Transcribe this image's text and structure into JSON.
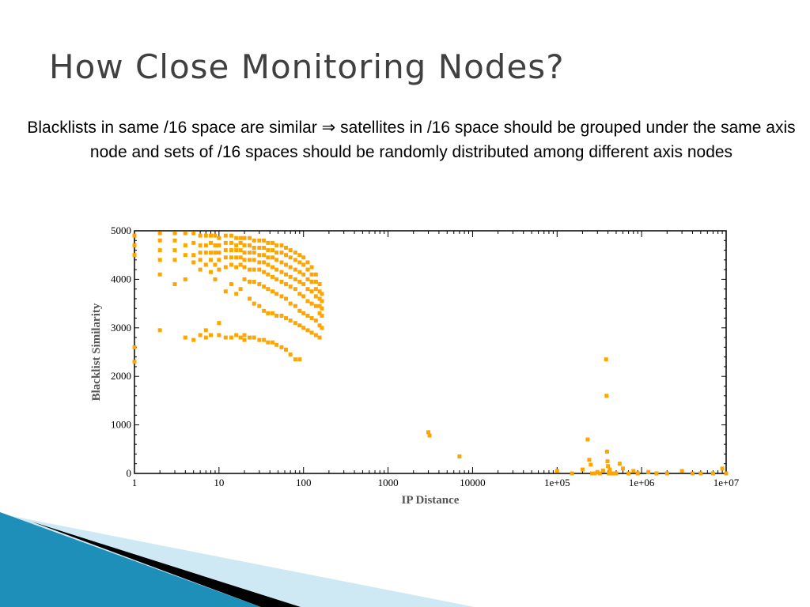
{
  "slide": {
    "title": "How Close Monitoring Nodes?",
    "body_part1": "Blacklists in same /16 space are similar",
    "implies_symbol": "⇒",
    "body_part2": "satellites in /16 space should be grouped under the same axis node and sets of /16 spaces should be randomly distributed among different axis nodes"
  },
  "colors": {
    "points": "#ffa500",
    "title": "#404040",
    "axis": "#000000",
    "decor_blue": "#1e8fb8",
    "decor_light": "#cfe9f4",
    "decor_dark": "#000000"
  },
  "chart_data": {
    "type": "scatter",
    "xlabel": "IP Distance",
    "ylabel": "Blacklist Similarity",
    "xscale": "log",
    "xlim": [
      1,
      10000000
    ],
    "ylim": [
      0,
      5000
    ],
    "xticks": [
      "1",
      "10",
      "100",
      "1000",
      "10000",
      "1e+05",
      "1e+06",
      "1e+07"
    ],
    "yticks": [
      "0",
      "1000",
      "2000",
      "3000",
      "4000",
      "5000"
    ],
    "grid": false,
    "points": [
      [
        1,
        4900
      ],
      [
        1,
        4700
      ],
      [
        1,
        4500
      ],
      [
        1,
        2600
      ],
      [
        1,
        2300
      ],
      [
        2,
        4950
      ],
      [
        2,
        4800
      ],
      [
        2,
        4600
      ],
      [
        2,
        4400
      ],
      [
        2,
        4100
      ],
      [
        2,
        2950
      ],
      [
        3,
        4950
      ],
      [
        3,
        4800
      ],
      [
        3,
        4600
      ],
      [
        3,
        3900
      ],
      [
        3,
        4400
      ],
      [
        4,
        4950
      ],
      [
        4,
        4700
      ],
      [
        4,
        4500
      ],
      [
        4,
        4000
      ],
      [
        4,
        2800
      ],
      [
        5,
        4950
      ],
      [
        5,
        4750
      ],
      [
        5,
        4500
      ],
      [
        5,
        4350
      ],
      [
        5,
        2750
      ],
      [
        6,
        4900
      ],
      [
        6,
        4700
      ],
      [
        6,
        4550
      ],
      [
        6,
        4400
      ],
      [
        6,
        4200
      ],
      [
        6,
        2850
      ],
      [
        7,
        4900
      ],
      [
        7,
        4700
      ],
      [
        7,
        4550
      ],
      [
        7,
        4300
      ],
      [
        7,
        2950
      ],
      [
        7,
        2800
      ],
      [
        8,
        4900
      ],
      [
        8,
        4750
      ],
      [
        8,
        4550
      ],
      [
        8,
        4400
      ],
      [
        8,
        4150
      ],
      [
        8,
        2850
      ],
      [
        9,
        4900
      ],
      [
        9,
        4700
      ],
      [
        9,
        4550
      ],
      [
        9,
        4300
      ],
      [
        9,
        4000
      ],
      [
        10,
        4850
      ],
      [
        10,
        4700
      ],
      [
        10,
        4550
      ],
      [
        10,
        4400
      ],
      [
        10,
        4200
      ],
      [
        10,
        3100
      ],
      [
        10,
        2850
      ],
      [
        12,
        4900
      ],
      [
        12,
        4750
      ],
      [
        12,
        4600
      ],
      [
        12,
        4450
      ],
      [
        12,
        4250
      ],
      [
        12,
        3750
      ],
      [
        12,
        2800
      ],
      [
        14,
        4900
      ],
      [
        14,
        4750
      ],
      [
        14,
        4600
      ],
      [
        14,
        4450
      ],
      [
        14,
        4300
      ],
      [
        14,
        3900
      ],
      [
        14,
        2800
      ],
      [
        16,
        4850
      ],
      [
        16,
        4700
      ],
      [
        16,
        4600
      ],
      [
        16,
        4450
      ],
      [
        16,
        4250
      ],
      [
        16,
        3700
      ],
      [
        16,
        2850
      ],
      [
        18,
        4850
      ],
      [
        18,
        4750
      ],
      [
        18,
        4600
      ],
      [
        18,
        4450
      ],
      [
        18,
        4300
      ],
      [
        18,
        3800
      ],
      [
        18,
        2800
      ],
      [
        20,
        4850
      ],
      [
        20,
        4700
      ],
      [
        20,
        4550
      ],
      [
        20,
        4400
      ],
      [
        20,
        4250
      ],
      [
        20,
        4000
      ],
      [
        20,
        2850
      ],
      [
        20,
        2750
      ],
      [
        23,
        4850
      ],
      [
        23,
        4700
      ],
      [
        23,
        4550
      ],
      [
        23,
        4400
      ],
      [
        23,
        4200
      ],
      [
        23,
        3950
      ],
      [
        23,
        3600
      ],
      [
        23,
        2800
      ],
      [
        26,
        4800
      ],
      [
        26,
        4650
      ],
      [
        26,
        4550
      ],
      [
        26,
        4400
      ],
      [
        26,
        4200
      ],
      [
        26,
        3950
      ],
      [
        26,
        3500
      ],
      [
        26,
        2800
      ],
      [
        30,
        4800
      ],
      [
        30,
        4650
      ],
      [
        30,
        4500
      ],
      [
        30,
        4350
      ],
      [
        30,
        4200
      ],
      [
        30,
        3900
      ],
      [
        30,
        3450
      ],
      [
        30,
        2750
      ],
      [
        34,
        4800
      ],
      [
        34,
        4650
      ],
      [
        34,
        4500
      ],
      [
        34,
        4350
      ],
      [
        34,
        4150
      ],
      [
        34,
        3850
      ],
      [
        34,
        3350
      ],
      [
        34,
        2750
      ],
      [
        38,
        4750
      ],
      [
        38,
        4600
      ],
      [
        38,
        4450
      ],
      [
        38,
        4300
      ],
      [
        38,
        4100
      ],
      [
        38,
        3800
      ],
      [
        38,
        3300
      ],
      [
        38,
        2700
      ],
      [
        43,
        4750
      ],
      [
        43,
        4600
      ],
      [
        43,
        4450
      ],
      [
        43,
        4250
      ],
      [
        43,
        4050
      ],
      [
        43,
        3750
      ],
      [
        43,
        3300
      ],
      [
        43,
        2700
      ],
      [
        48,
        4700
      ],
      [
        48,
        4550
      ],
      [
        48,
        4400
      ],
      [
        48,
        4200
      ],
      [
        48,
        4000
      ],
      [
        48,
        3700
      ],
      [
        48,
        3250
      ],
      [
        48,
        2650
      ],
      [
        55,
        4700
      ],
      [
        55,
        4550
      ],
      [
        55,
        4350
      ],
      [
        55,
        4150
      ],
      [
        55,
        3950
      ],
      [
        55,
        3650
      ],
      [
        55,
        3250
      ],
      [
        55,
        2600
      ],
      [
        62,
        4650
      ],
      [
        62,
        4500
      ],
      [
        62,
        4300
      ],
      [
        62,
        4100
      ],
      [
        62,
        3900
      ],
      [
        62,
        3600
      ],
      [
        62,
        3200
      ],
      [
        62,
        2550
      ],
      [
        70,
        4600
      ],
      [
        70,
        4450
      ],
      [
        70,
        4250
      ],
      [
        70,
        4050
      ],
      [
        70,
        3850
      ],
      [
        70,
        3500
      ],
      [
        70,
        3150
      ],
      [
        70,
        2450
      ],
      [
        80,
        4550
      ],
      [
        80,
        4400
      ],
      [
        80,
        4200
      ],
      [
        80,
        4000
      ],
      [
        80,
        3800
      ],
      [
        80,
        3450
      ],
      [
        80,
        3100
      ],
      [
        80,
        2350
      ],
      [
        90,
        4500
      ],
      [
        90,
        4350
      ],
      [
        90,
        4150
      ],
      [
        90,
        3950
      ],
      [
        90,
        3700
      ],
      [
        90,
        3350
      ],
      [
        90,
        3050
      ],
      [
        90,
        2350
      ],
      [
        100,
        4450
      ],
      [
        100,
        4300
      ],
      [
        100,
        4100
      ],
      [
        100,
        3900
      ],
      [
        100,
        3650
      ],
      [
        100,
        3300
      ],
      [
        100,
        3000
      ],
      [
        112,
        4350
      ],
      [
        112,
        4200
      ],
      [
        112,
        4000
      ],
      [
        112,
        3800
      ],
      [
        112,
        3550
      ],
      [
        112,
        3250
      ],
      [
        112,
        2950
      ],
      [
        125,
        4250
      ],
      [
        125,
        4100
      ],
      [
        125,
        3950
      ],
      [
        125,
        3750
      ],
      [
        125,
        3500
      ],
      [
        125,
        3200
      ],
      [
        125,
        2900
      ],
      [
        140,
        4100
      ],
      [
        140,
        3950
      ],
      [
        140,
        3800
      ],
      [
        140,
        3650
      ],
      [
        140,
        3450
      ],
      [
        140,
        3150
      ],
      [
        140,
        2850
      ],
      [
        155,
        3900
      ],
      [
        155,
        3750
      ],
      [
        155,
        3600
      ],
      [
        155,
        3450
      ],
      [
        155,
        3300
      ],
      [
        155,
        3050
      ],
      [
        155,
        2800
      ],
      [
        165,
        3700
      ],
      [
        165,
        3550
      ],
      [
        165,
        3400
      ],
      [
        165,
        3250
      ],
      [
        165,
        3000
      ],
      [
        3000,
        850
      ],
      [
        3100,
        780
      ],
      [
        7000,
        350
      ],
      [
        100000,
        50
      ],
      [
        150000,
        0
      ],
      [
        200000,
        80
      ],
      [
        230000,
        700
      ],
      [
        240000,
        280
      ],
      [
        250000,
        180
      ],
      [
        260000,
        0
      ],
      [
        280000,
        0
      ],
      [
        300000,
        30
      ],
      [
        320000,
        0
      ],
      [
        350000,
        60
      ],
      [
        380000,
        2350
      ],
      [
        385000,
        1600
      ],
      [
        390000,
        450
      ],
      [
        395000,
        250
      ],
      [
        400000,
        150
      ],
      [
        410000,
        0
      ],
      [
        420000,
        80
      ],
      [
        450000,
        0
      ],
      [
        500000,
        0
      ],
      [
        550000,
        200
      ],
      [
        600000,
        100
      ],
      [
        700000,
        0
      ],
      [
        800000,
        50
      ],
      [
        900000,
        0
      ],
      [
        1200000,
        30
      ],
      [
        1500000,
        0
      ],
      [
        2000000,
        0
      ],
      [
        3000000,
        50
      ],
      [
        4000000,
        0
      ],
      [
        5000000,
        0
      ],
      [
        7000000,
        0
      ],
      [
        9000000,
        100
      ],
      [
        10000000,
        0
      ]
    ]
  }
}
